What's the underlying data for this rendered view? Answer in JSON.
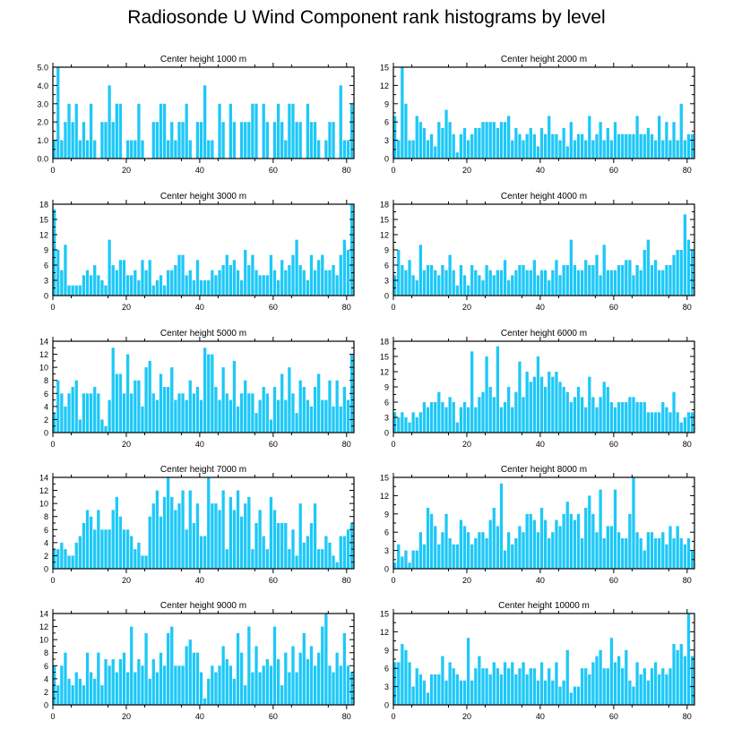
{
  "title": "Radiosonde U Wind Component rank histograms by level",
  "colors": {
    "bar": "#1ec8f7",
    "axis": "#000000",
    "background": "#ffffff"
  },
  "chart_data": [
    {
      "type": "bar",
      "title": "Center height 1000 m",
      "xlim": [
        0,
        82
      ],
      "ylim": [
        0,
        5
      ],
      "xticks": [
        0,
        20,
        40,
        60,
        80
      ],
      "yticks": [
        0,
        1,
        2,
        3,
        4,
        5
      ],
      "ytick_labels": [
        "0.0",
        "1.0",
        "2.0",
        "3.0",
        "4.0",
        "5.0"
      ],
      "values": [
        1,
        5,
        1,
        2,
        3,
        2,
        3,
        1,
        2,
        1,
        3,
        1,
        0,
        2,
        2,
        4,
        2,
        3,
        3,
        0,
        1,
        1,
        1,
        3,
        1,
        0,
        0,
        2,
        2,
        3,
        3,
        1,
        2,
        1,
        2,
        2,
        3,
        1,
        0,
        2,
        2,
        4,
        1,
        1,
        0,
        3,
        2,
        0,
        3,
        2,
        0,
        2,
        2,
        2,
        3,
        3,
        0,
        3,
        2,
        0,
        2,
        3,
        2,
        1,
        3,
        3,
        2,
        2,
        0,
        3,
        2,
        2,
        1,
        0,
        1,
        2,
        2,
        0,
        4,
        1,
        1,
        3
      ]
    },
    {
      "type": "bar",
      "title": "Center height 2000 m",
      "xlim": [
        0,
        82
      ],
      "ylim": [
        0,
        15
      ],
      "xticks": [
        0,
        20,
        40,
        60,
        80
      ],
      "yticks": [
        0,
        3,
        6,
        9,
        12,
        15
      ],
      "ytick_labels": [
        "0",
        "3",
        "6",
        "9",
        "12",
        "15"
      ],
      "values": [
        7,
        3,
        15,
        9,
        3,
        3,
        7,
        6,
        5,
        3,
        4,
        2,
        6,
        5,
        8,
        6,
        4,
        1,
        4,
        5,
        3,
        4,
        5,
        5,
        6,
        6,
        6,
        6,
        5,
        6,
        6,
        7,
        3,
        5,
        4,
        3,
        4,
        5,
        4,
        2,
        5,
        4,
        7,
        4,
        4,
        3,
        5,
        2,
        6,
        3,
        4,
        4,
        3,
        7,
        3,
        4,
        6,
        3,
        5,
        3,
        6,
        4,
        4,
        4,
        4,
        4,
        7,
        4,
        4,
        5,
        4,
        3,
        7,
        3,
        6,
        3,
        6,
        3,
        9,
        3,
        4,
        4
      ]
    },
    {
      "type": "bar",
      "title": "Center height 3000 m",
      "xlim": [
        0,
        82
      ],
      "ylim": [
        0,
        18
      ],
      "xticks": [
        0,
        20,
        40,
        60,
        80
      ],
      "yticks": [
        0,
        3,
        6,
        9,
        12,
        15,
        18
      ],
      "ytick_labels": [
        "0",
        "3",
        "6",
        "9",
        "12",
        "15",
        "18"
      ],
      "values": [
        17,
        9,
        5,
        10,
        2,
        2,
        2,
        2,
        4,
        5,
        4,
        6,
        4,
        3,
        2,
        11,
        6,
        5,
        7,
        7,
        4,
        4,
        5,
        3,
        7,
        5,
        7,
        2,
        3,
        4,
        2,
        5,
        5,
        6,
        8,
        8,
        4,
        5,
        3,
        7,
        3,
        3,
        3,
        5,
        4,
        5,
        6,
        8,
        6,
        7,
        5,
        3,
        9,
        6,
        8,
        5,
        4,
        4,
        4,
        8,
        5,
        3,
        7,
        5,
        6,
        8,
        11,
        6,
        5,
        3,
        8,
        5,
        7,
        8,
        5,
        5,
        6,
        4,
        8,
        11,
        9,
        18
      ]
    },
    {
      "type": "bar",
      "title": "Center height 4000 m",
      "xlim": [
        0,
        82
      ],
      "ylim": [
        0,
        18
      ],
      "xticks": [
        0,
        20,
        40,
        60,
        80
      ],
      "yticks": [
        0,
        3,
        6,
        9,
        12,
        15,
        18
      ],
      "ytick_labels": [
        "0",
        "3",
        "6",
        "9",
        "12",
        "15",
        "18"
      ],
      "values": [
        4,
        9,
        6,
        5,
        7,
        4,
        3,
        10,
        5,
        6,
        6,
        5,
        4,
        6,
        5,
        8,
        5,
        2,
        6,
        4,
        2,
        6,
        5,
        4,
        3,
        6,
        5,
        4,
        5,
        5,
        7,
        3,
        4,
        5,
        6,
        6,
        5,
        5,
        7,
        4,
        5,
        5,
        3,
        5,
        7,
        4,
        6,
        6,
        11,
        6,
        5,
        5,
        7,
        6,
        6,
        8,
        4,
        10,
        5,
        5,
        5,
        6,
        6,
        7,
        7,
        4,
        6,
        5,
        9,
        11,
        6,
        7,
        5,
        5,
        6,
        6,
        8,
        9,
        9,
        16,
        11,
        9
      ]
    },
    {
      "type": "bar",
      "title": "Center height 5000 m",
      "xlim": [
        0,
        82
      ],
      "ylim": [
        0,
        14
      ],
      "xticks": [
        0,
        20,
        40,
        60,
        80
      ],
      "yticks": [
        0,
        2,
        4,
        6,
        8,
        10,
        12,
        14
      ],
      "ytick_labels": [
        "0",
        "2",
        "4",
        "6",
        "8",
        "10",
        "12",
        "14"
      ],
      "values": [
        3,
        8,
        6,
        4,
        6,
        7,
        8,
        2,
        6,
        6,
        6,
        7,
        6,
        2,
        1,
        5,
        13,
        9,
        9,
        6,
        12,
        6,
        8,
        8,
        4,
        10,
        11,
        6,
        5,
        9,
        7,
        7,
        10,
        5,
        6,
        6,
        5,
        8,
        6,
        7,
        5,
        13,
        12,
        12,
        7,
        5,
        10,
        6,
        5,
        11,
        4,
        6,
        8,
        6,
        6,
        3,
        5,
        7,
        6,
        2,
        7,
        5,
        9,
        5,
        10,
        6,
        3,
        8,
        7,
        5,
        4,
        7,
        9,
        5,
        5,
        8,
        4,
        8,
        4,
        7,
        5,
        12
      ]
    },
    {
      "type": "bar",
      "title": "Center height 6000 m",
      "xlim": [
        0,
        82
      ],
      "ylim": [
        0,
        18
      ],
      "xticks": [
        0,
        20,
        40,
        60,
        80
      ],
      "yticks": [
        0,
        3,
        6,
        9,
        12,
        15,
        18
      ],
      "ytick_labels": [
        "0",
        "3",
        "6",
        "9",
        "12",
        "15",
        "18"
      ],
      "values": [
        4,
        3,
        4,
        3,
        2,
        4,
        3,
        4,
        6,
        5,
        6,
        6,
        8,
        6,
        5,
        7,
        6,
        2,
        5,
        6,
        5,
        16,
        5,
        7,
        8,
        15,
        9,
        7,
        17,
        5,
        6,
        9,
        5,
        8,
        14,
        7,
        12,
        10,
        11,
        15,
        11,
        9,
        12,
        11,
        12,
        10,
        9,
        8,
        6,
        7,
        9,
        7,
        5,
        11,
        7,
        5,
        7,
        10,
        9,
        6,
        5,
        6,
        6,
        6,
        7,
        7,
        6,
        6,
        6,
        4,
        4,
        4,
        4,
        6,
        5,
        4,
        8,
        4,
        2,
        3,
        4,
        4
      ]
    },
    {
      "type": "bar",
      "title": "Center height 7000 m",
      "xlim": [
        0,
        82
      ],
      "ylim": [
        0,
        14
      ],
      "xticks": [
        0,
        20,
        40,
        60,
        80
      ],
      "yticks": [
        0,
        2,
        4,
        6,
        8,
        10,
        12,
        14
      ],
      "ytick_labels": [
        "0",
        "2",
        "4",
        "6",
        "8",
        "10",
        "12",
        "14"
      ],
      "values": [
        3,
        3,
        4,
        3,
        2,
        2,
        4,
        5,
        7,
        9,
        8,
        6,
        9,
        6,
        6,
        6,
        9,
        11,
        8,
        6,
        6,
        5,
        3,
        4,
        2,
        2,
        8,
        10,
        12,
        8,
        11,
        14,
        11,
        9,
        10,
        12,
        6,
        12,
        7,
        10,
        5,
        5,
        14,
        10,
        10,
        9,
        12,
        3,
        11,
        9,
        12,
        8,
        10,
        11,
        3,
        7,
        9,
        5,
        3,
        11,
        9,
        7,
        7,
        7,
        3,
        6,
        2,
        10,
        4,
        5,
        7,
        10,
        3,
        3,
        5,
        4,
        2,
        1,
        5,
        5,
        6,
        7
      ]
    },
    {
      "type": "bar",
      "title": "Center height 8000 m",
      "xlim": [
        0,
        82
      ],
      "ylim": [
        0,
        15
      ],
      "xticks": [
        0,
        20,
        40,
        60,
        80
      ],
      "yticks": [
        0,
        3,
        6,
        9,
        12,
        15
      ],
      "ytick_labels": [
        "0",
        "3",
        "6",
        "9",
        "12",
        "15"
      ],
      "values": [
        1,
        4,
        2,
        3,
        1,
        3,
        3,
        6,
        4,
        10,
        9,
        7,
        4,
        6,
        9,
        5,
        4,
        4,
        8,
        7,
        6,
        4,
        5,
        6,
        6,
        5,
        8,
        10,
        7,
        14,
        3,
        6,
        4,
        5,
        7,
        6,
        9,
        9,
        8,
        6,
        10,
        8,
        5,
        6,
        8,
        7,
        9,
        11,
        9,
        8,
        9,
        5,
        10,
        12,
        9,
        6,
        13,
        5,
        7,
        7,
        13,
        6,
        5,
        5,
        9,
        15,
        6,
        5,
        3,
        6,
        6,
        5,
        5,
        6,
        4,
        7,
        5,
        7,
        5,
        4,
        5,
        3
      ]
    },
    {
      "type": "bar",
      "title": "Center height 9000 m",
      "xlim": [
        0,
        82
      ],
      "ylim": [
        0,
        14
      ],
      "xticks": [
        0,
        20,
        40,
        60,
        80
      ],
      "yticks": [
        0,
        2,
        4,
        6,
        8,
        10,
        12,
        14
      ],
      "ytick_labels": [
        "0",
        "2",
        "4",
        "6",
        "8",
        "10",
        "12",
        "14"
      ],
      "values": [
        6,
        3,
        6,
        8,
        4,
        3,
        5,
        4,
        3,
        8,
        5,
        4,
        8,
        3,
        7,
        6,
        7,
        5,
        7,
        8,
        5,
        12,
        5,
        7,
        6,
        11,
        4,
        7,
        5,
        8,
        6,
        11,
        12,
        6,
        6,
        6,
        9,
        10,
        8,
        8,
        5,
        1,
        4,
        6,
        5,
        6,
        9,
        7,
        6,
        4,
        11,
        8,
        3,
        12,
        5,
        9,
        5,
        6,
        7,
        6,
        12,
        7,
        3,
        8,
        5,
        9,
        5,
        8,
        11,
        7,
        9,
        6,
        8,
        12,
        14,
        6,
        5,
        8,
        6,
        11,
        6,
        5
      ]
    },
    {
      "type": "bar",
      "title": "Center height 10000 m",
      "xlim": [
        0,
        82
      ],
      "ylim": [
        0,
        15
      ],
      "xticks": [
        0,
        20,
        40,
        60,
        80
      ],
      "yticks": [
        0,
        3,
        6,
        9,
        12,
        15
      ],
      "ytick_labels": [
        "0",
        "3",
        "6",
        "9",
        "12",
        "15"
      ],
      "values": [
        7,
        7,
        10,
        9,
        7,
        3,
        6,
        5,
        4,
        2,
        5,
        5,
        5,
        8,
        4,
        7,
        6,
        5,
        4,
        4,
        11,
        4,
        6,
        8,
        6,
        6,
        5,
        7,
        6,
        5,
        7,
        6,
        7,
        5,
        6,
        7,
        5,
        6,
        6,
        4,
        7,
        4,
        6,
        4,
        7,
        3,
        4,
        9,
        2,
        3,
        3,
        6,
        6,
        5,
        7,
        8,
        9,
        6,
        6,
        11,
        7,
        8,
        6,
        9,
        4,
        3,
        7,
        5,
        6,
        4,
        6,
        7,
        5,
        6,
        5,
        6,
        10,
        9,
        10,
        8,
        15,
        8
      ]
    }
  ]
}
